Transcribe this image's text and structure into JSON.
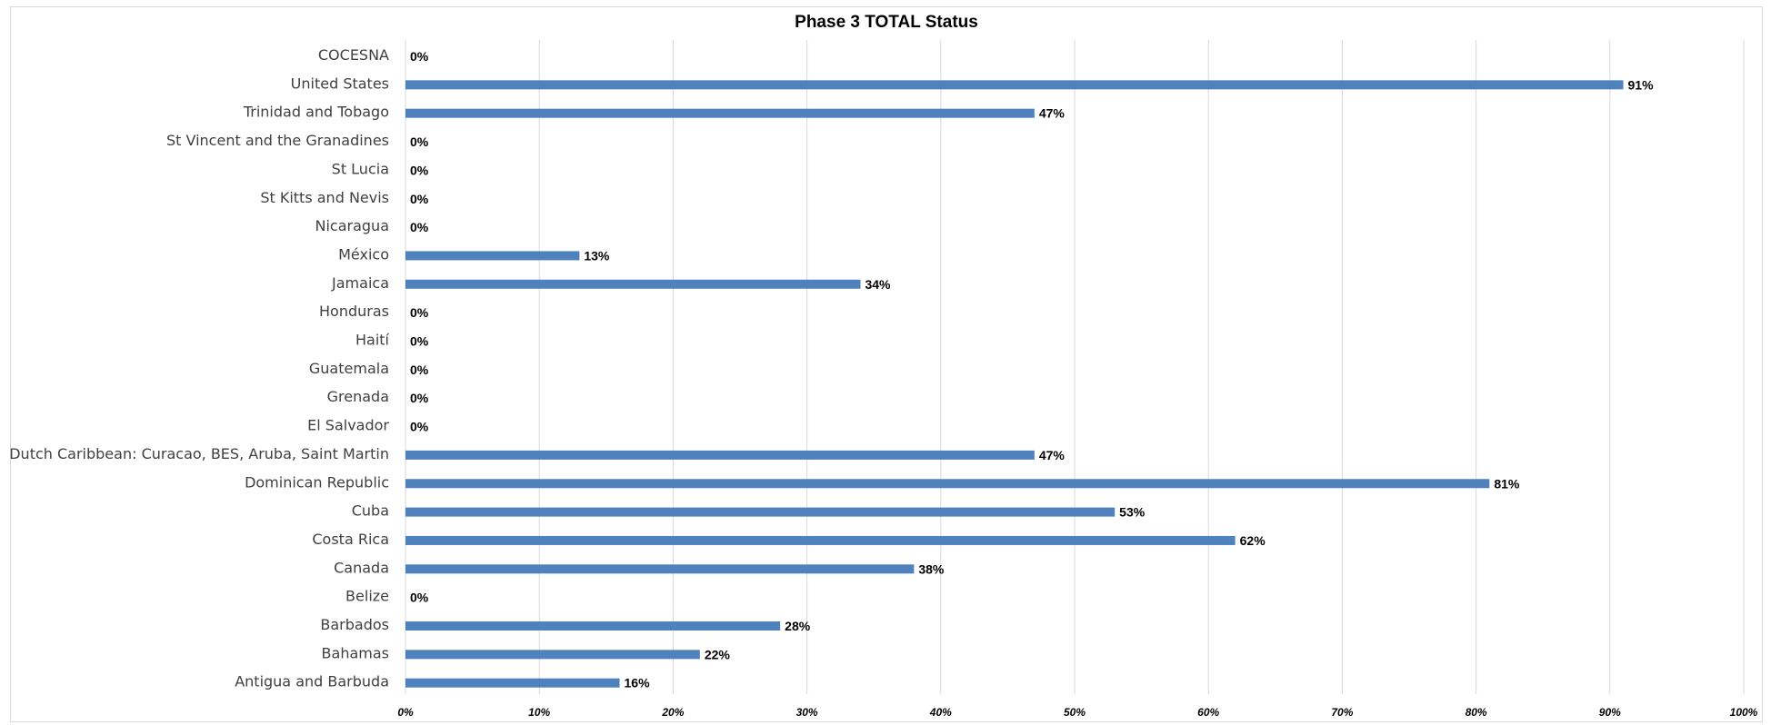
{
  "chart_data": {
    "type": "bar",
    "orientation": "horizontal",
    "title": "Phase 3 TOTAL Status",
    "categories": [
      "COCESNA",
      "United States",
      "Trinidad and Tobago",
      "St Vincent and the Granadines",
      "St Lucia",
      "St Kitts and Nevis",
      "Nicaragua",
      "México",
      "Jamaica",
      "Honduras",
      "Haití",
      "Guatemala",
      "Grenada",
      "El Salvador",
      "Dutch Caribbean: Curacao, BES, Aruba, Saint Martin",
      "Dominican Republic",
      "Cuba",
      "Costa Rica",
      "Canada",
      "Belize",
      "Barbados",
      "Bahamas",
      "Antigua and Barbuda"
    ],
    "values": [
      0,
      91,
      47,
      0,
      0,
      0,
      0,
      13,
      34,
      0,
      0,
      0,
      0,
      0,
      47,
      81,
      53,
      62,
      38,
      0,
      28,
      22,
      16
    ],
    "data_labels": [
      "0%",
      "91%",
      "47%",
      "0%",
      "0%",
      "0%",
      "0%",
      "13%",
      "34%",
      "0%",
      "0%",
      "0%",
      "0%",
      "0%",
      "47%",
      "81%",
      "53%",
      "62%",
      "38%",
      "0%",
      "28%",
      "22%",
      "16%"
    ],
    "x_ticks": [
      "0%",
      "10%",
      "20%",
      "30%",
      "40%",
      "50%",
      "60%",
      "70%",
      "80%",
      "90%",
      "100%"
    ],
    "xlim": [
      0,
      100
    ],
    "grid": "vertical",
    "legend": "none",
    "bar_color": "#4f81bd",
    "grid_color": "#d9d9d9"
  }
}
